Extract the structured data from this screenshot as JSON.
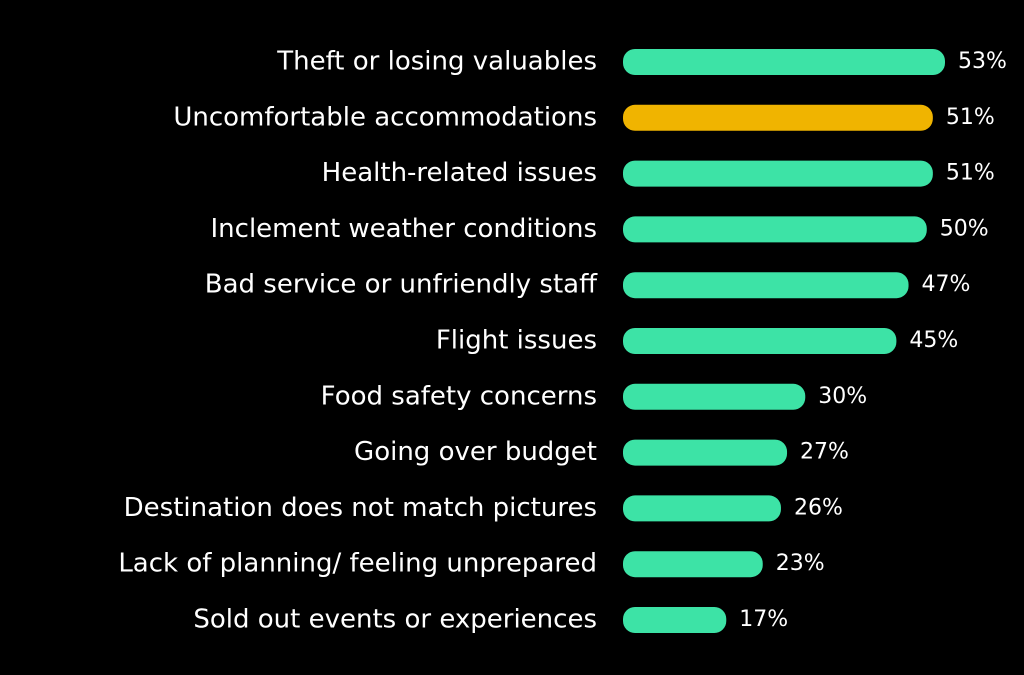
{
  "chart_data": {
    "type": "hbar",
    "categories": [
      "Theft or losing valuables",
      "Uncomfortable accommodations",
      "Health-related issues",
      "Inclement weather conditions",
      "Bad service or unfriendly staff",
      "Flight issues",
      "Food safety concerns",
      "Going over budget",
      "Destination does not match pictures",
      "Lack of planning/ feeling unprepared",
      "Sold out events or experiences"
    ],
    "values": [
      53,
      51,
      51,
      50,
      47,
      45,
      30,
      27,
      26,
      23,
      17
    ],
    "value_labels": [
      "53%",
      "51%",
      "51%",
      "50%",
      "47%",
      "45%",
      "30%",
      "27%",
      "26%",
      "23%",
      "17%"
    ],
    "colors": [
      "#3de3a6",
      "#f0b400",
      "#3de3a6",
      "#3de3a6",
      "#3de3a6",
      "#3de3a6",
      "#3de3a6",
      "#3de3a6",
      "#3de3a6",
      "#3de3a6",
      "#3de3a6"
    ]
  }
}
